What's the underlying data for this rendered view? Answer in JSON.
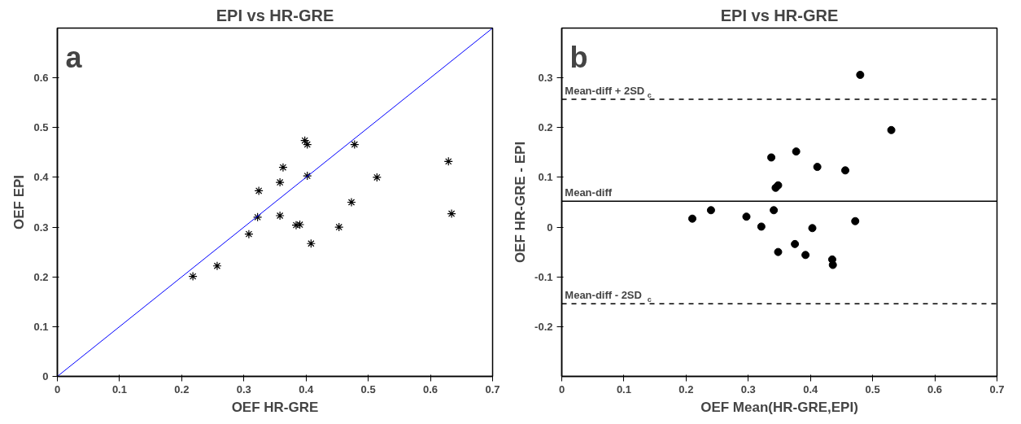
{
  "chart_data": [
    {
      "type": "scatter",
      "title": "EPI vs HR-GRE",
      "xlabel": "OEF HR-GRE",
      "ylabel": "OEF EPI",
      "annotations": [
        "a"
      ],
      "grid": false,
      "xlim": [
        0,
        0.7
      ],
      "ylim": [
        0,
        0.7
      ],
      "xticks": [
        0,
        0.1,
        0.2,
        0.3,
        0.4,
        0.5,
        0.6,
        0.7
      ],
      "yticks": [
        0,
        0.1,
        0.2,
        0.3,
        0.4,
        0.5,
        0.6
      ],
      "series": [
        {
          "marker": "cross",
          "color": "#000000",
          "x": [
            0.218,
            0.257,
            0.308,
            0.322,
            0.324,
            0.358,
            0.363,
            0.358,
            0.384,
            0.39,
            0.398,
            0.402,
            0.402,
            0.408,
            0.453,
            0.473,
            0.478,
            0.514,
            0.629,
            0.634
          ],
          "values": [
            0.201,
            0.222,
            0.286,
            0.32,
            0.373,
            0.39,
            0.42,
            0.323,
            0.304,
            0.305,
            0.474,
            0.466,
            0.403,
            0.267,
            0.3,
            0.35,
            0.466,
            0.4,
            0.432,
            0.327
          ]
        },
        {
          "type": "line",
          "marker": "none",
          "color": "#0000ff",
          "x": [
            0,
            0.7
          ],
          "values": [
            0,
            0.7
          ]
        }
      ]
    },
    {
      "type": "scatter",
      "title": "EPI vs HR-GRE",
      "xlabel": "OEF Mean(HR-GRE,EPI)",
      "ylabel": "OEF HR-GRE - EPI",
      "annotations": [
        "b"
      ],
      "marker": "circle",
      "grid": false,
      "xlim": [
        0,
        0.7
      ],
      "ylim": [
        -0.3,
        0.4
      ],
      "xticks": [
        0,
        0.1,
        0.2,
        0.3,
        0.4,
        0.5,
        0.6,
        0.7
      ],
      "yticks": [
        -0.2,
        -0.1,
        0,
        0.1,
        0.2,
        0.3
      ],
      "series": [
        {
          "color": "#000000",
          "x": [
            0.21,
            0.24,
            0.297,
            0.321,
            0.337,
            0.341,
            0.344,
            0.348,
            0.348,
            0.377,
            0.375,
            0.392,
            0.403,
            0.411,
            0.435,
            0.436,
            0.456,
            0.472,
            0.48,
            0.53
          ],
          "values": [
            0.017,
            0.034,
            0.021,
            0.001,
            0.14,
            0.034,
            0.079,
            0.084,
            -0.05,
            0.152,
            -0.034,
            -0.056,
            -0.002,
            0.121,
            -0.065,
            -0.076,
            0.114,
            0.012,
            0.306,
            0.195
          ]
        }
      ],
      "ref_lines": [
        {
          "axis": "y",
          "value": 0.257,
          "label": "Mean-diff + 2SD$_{c}$",
          "color": "#000000",
          "line_style": "dashed"
        },
        {
          "axis": "y",
          "value": 0.052,
          "label": "Mean-diff",
          "color": "#000000",
          "line_style": "solid"
        },
        {
          "axis": "y",
          "value": -0.154,
          "label": "Mean-diff - 2SD$_{c}$",
          "color": "#000000",
          "line_style": "dashed"
        }
      ]
    }
  ]
}
